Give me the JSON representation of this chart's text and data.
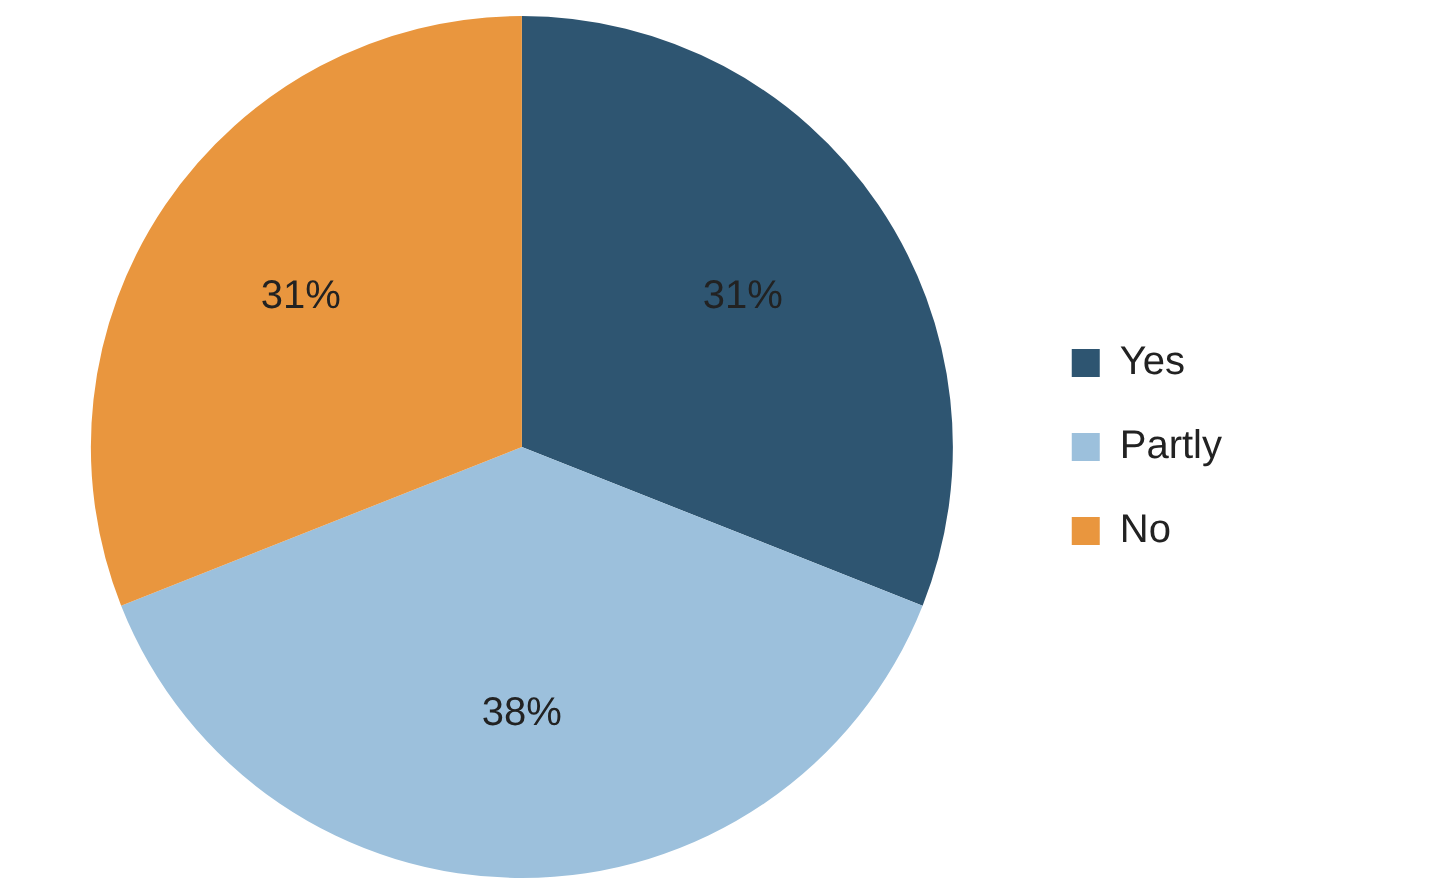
{
  "chart_data": {
    "type": "pie",
    "categories": [
      "Yes",
      "Partly",
      "No"
    ],
    "values": [
      31,
      38,
      31
    ],
    "colors": [
      "#2e5571",
      "#9cc0dc",
      "#e9963e"
    ],
    "value_labels": [
      "31%",
      "38%",
      "31%"
    ],
    "legend": "right"
  }
}
